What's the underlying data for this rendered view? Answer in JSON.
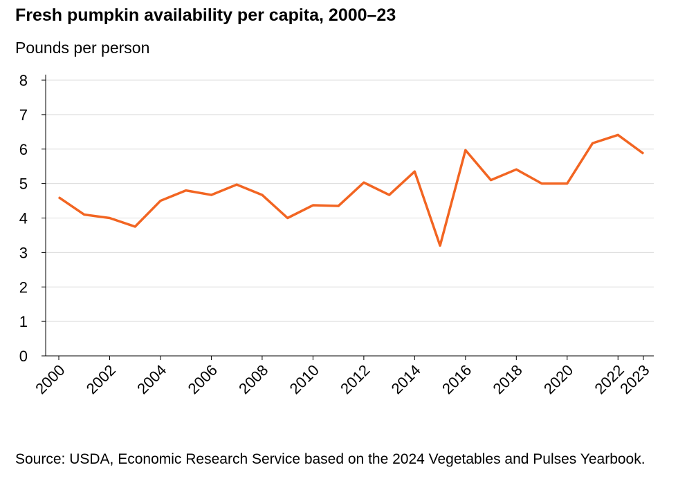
{
  "chart_data": {
    "type": "line",
    "title": "Fresh pumpkin availability per capita, 2000–23",
    "ylabel": "Pounds per person",
    "xlabel": "",
    "x": [
      2000,
      2001,
      2002,
      2003,
      2004,
      2005,
      2006,
      2007,
      2008,
      2009,
      2010,
      2011,
      2012,
      2013,
      2014,
      2015,
      2016,
      2017,
      2018,
      2019,
      2020,
      2021,
      2022,
      2023
    ],
    "values": [
      4.6,
      4.1,
      4.0,
      3.75,
      4.5,
      4.8,
      4.67,
      4.97,
      4.67,
      4.0,
      4.37,
      4.35,
      5.03,
      4.67,
      5.35,
      3.2,
      5.97,
      5.1,
      5.41,
      5.0,
      5.0,
      6.17,
      6.41,
      5.87
    ],
    "xticks": [
      "2000",
      "2002",
      "2004",
      "2006",
      "2008",
      "2010",
      "2012",
      "2014",
      "2016",
      "2018",
      "2020",
      "2022",
      "2023"
    ],
    "yticks": [
      "0",
      "1",
      "2",
      "3",
      "4",
      "5",
      "6",
      "7",
      "8"
    ],
    "ylim": [
      0,
      8
    ],
    "xlim": [
      2000,
      2023
    ],
    "grid": "horizontal",
    "line_color": "#f26522",
    "source": "Source: USDA, Economic Research Service based on the 2024 Vegetables and Pulses Yearbook."
  }
}
